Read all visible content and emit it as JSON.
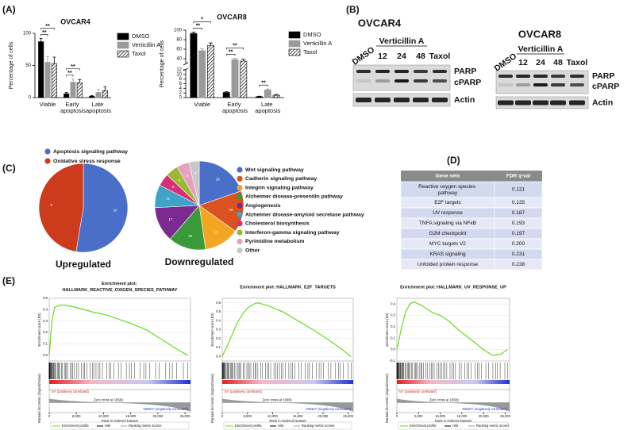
{
  "panel_labels": [
    "(A)",
    "(B)",
    "(C)",
    "(D)",
    "(E)"
  ],
  "chart_data": [
    {
      "type": "bar",
      "title": "OVCAR4",
      "ylabel": "Percentage of cells",
      "categories": [
        "Viable",
        "Early apoptosis",
        "Late apoptosis"
      ],
      "series": [
        {
          "name": "DMSO",
          "color": "#000000",
          "values": [
            87,
            6,
            2
          ],
          "errors": [
            5,
            2,
            1
          ]
        },
        {
          "name": "Verticillin A",
          "color": "#9a9a9a",
          "values": [
            55,
            24,
            8
          ],
          "errors": [
            9,
            5,
            5
          ]
        },
        {
          "name": "Taxol",
          "color": "#000000",
          "pattern": "hatch",
          "values": [
            53,
            23,
            11
          ],
          "errors": [
            10,
            5,
            6
          ]
        }
      ],
      "ylim": [
        0,
        100
      ],
      "yticks": [
        0,
        50,
        100
      ],
      "significance": [
        [
          "**",
          "**"
        ],
        [
          "**",
          "**"
        ],
        []
      ]
    },
    {
      "type": "bar",
      "title": "OVCAR8",
      "ylabel": "Percentage of cells",
      "categories": [
        "Viable",
        "Early apoptosis",
        "Late apoptosis"
      ],
      "series": [
        {
          "name": "DMSO",
          "color": "#000000",
          "values": [
            93,
            2.2,
            0.4
          ],
          "errors": [
            3,
            0.3,
            0.2
          ]
        },
        {
          "name": "Verticillin A",
          "color": "#9a9a9a",
          "values": [
            57,
            38,
            3.3
          ],
          "errors": [
            4,
            3,
            0.4
          ]
        },
        {
          "name": "Taxol",
          "color": "#000000",
          "pattern": "hatch",
          "values": [
            68,
            35,
            1.0
          ],
          "errors": [
            5,
            4,
            0.3
          ]
        }
      ],
      "ylim": [
        0,
        100
      ],
      "ybreak": [
        12,
        30
      ],
      "yticks": [
        0,
        2,
        4,
        6,
        8,
        10,
        12,
        40,
        60,
        80,
        100
      ],
      "significance": [
        [
          "**",
          "*"
        ],
        [
          "**",
          "**"
        ],
        [
          "**"
        ]
      ]
    },
    {
      "type": "pie",
      "title": "Upregulated",
      "categories": [
        "Apoptosis signaling pathway",
        "Oxidative stress response"
      ],
      "values": [
        10,
        9
      ],
      "colors": [
        "#4a6fc9",
        "#cc3b1c"
      ]
    },
    {
      "type": "pie",
      "title": "Downregulated",
      "categories": [
        "Wnt signaling pathway",
        "Cadherin signaling pathway",
        "Integrin signaling pathway",
        "Alzheimer disease-presenilin pathway",
        "Angiogenesis",
        "Alzheimer disease-amyloid secretase pathway",
        "Cholesterol biosynthesis",
        "Interferon-gamma signaling pathway",
        "Pyrimidine metabolism",
        "Other"
      ],
      "values": [
        26,
        20,
        17,
        18,
        17,
        11,
        6,
        6,
        6,
        5
      ],
      "colors": [
        "#4a6fc9",
        "#d9521f",
        "#f2a623",
        "#3a9a3a",
        "#7b2a8f",
        "#3fa3c8",
        "#d4317a",
        "#9ab832",
        "#e6a0c0",
        "#c8c8c8"
      ]
    },
    {
      "type": "line",
      "title": "Enrichment plot: HALLMARK_REACTIVE_OXIGEN_SPECIES_PATHWAY",
      "ylabel": "Enrichment score (ES)",
      "ylabel2": "Ranked list metric (Signal2Noise)",
      "xlabel": "Rank in Ordered Dataset",
      "x": [
        0,
        500,
        1000,
        2000,
        3000,
        5000,
        8000,
        10000,
        12000,
        15000,
        18000,
        20000,
        22000,
        24000,
        25500
      ],
      "series": [
        {
          "name": "Enrichment profile",
          "color": "#66dd22",
          "values": [
            0,
            0.3,
            0.42,
            0.44,
            0.44,
            0.42,
            0.38,
            0.36,
            0.33,
            0.28,
            0.22,
            0.16,
            0.1,
            0.04,
            0
          ]
        }
      ],
      "legend_entries": [
        "Hits",
        "Ranking metric scores"
      ],
      "annotations": [
        "'VA' (positively correlated)",
        "Zero cross at 10681",
        "'DMSO' (negatively correlated)"
      ],
      "xlim": [
        0,
        26000
      ],
      "xticks": [
        0,
        {
          "value": 5000,
          "label": "5,000"
        },
        {
          "value": 10000,
          "label": "10,000"
        },
        {
          "value": 15000,
          "label": "15,000"
        },
        {
          "value": 20000,
          "label": "20,000"
        },
        {
          "value": 25000,
          "label": "25,000"
        }
      ],
      "ylim": [
        -0.05,
        0.5
      ],
      "yticks": [
        {
          "value": 0,
          "label": "0.0"
        },
        0.1,
        0.2,
        0.3,
        0.4,
        0.5
      ]
    },
    {
      "type": "line",
      "title": "Enrichment plot: HALLMARK_E2F_TARGETS",
      "ylabel": "Enrichment score (ES)",
      "ylabel2": "Ranked list metric (Signal2Noise)",
      "xlabel": "Rank in Ordered Dataset",
      "x": [
        0,
        1000,
        2000,
        3000,
        4000,
        5000,
        6000,
        7000,
        9000,
        12000,
        15000,
        18000,
        21000,
        24000,
        25500
      ],
      "series": [
        {
          "name": "Enrichment profile",
          "color": "#66dd22",
          "values": [
            0,
            0.12,
            0.25,
            0.38,
            0.47,
            0.54,
            0.58,
            0.6,
            0.57,
            0.5,
            0.4,
            0.3,
            0.19,
            0.07,
            0
          ]
        }
      ],
      "legend_entries": [
        "Hits",
        "Ranking metric scores"
      ],
      "annotations": [
        "'VA' (positively correlated)",
        "Zero cross at 10681",
        "'DMSO' (negatively correlated)"
      ],
      "xlim": [
        0,
        26000
      ],
      "xticks": [
        0,
        {
          "value": 5000,
          "label": "5,000"
        },
        {
          "value": 10000,
          "label": "10,000"
        },
        {
          "value": 15000,
          "label": "15,000"
        },
        {
          "value": 20000,
          "label": "20,000"
        },
        {
          "value": 25000,
          "label": "25,000"
        }
      ],
      "ylim": [
        -0.05,
        0.65
      ],
      "yticks": [
        {
          "value": 0,
          "label": "0.0"
        },
        0.1,
        0.2,
        0.3,
        0.4,
        0.5,
        0.6
      ]
    },
    {
      "type": "line",
      "title": "Enrichment plot: HALLMARK_UV_RESPONSE_UP",
      "ylabel": "Enrichment score (ES)",
      "ylabel2": "Ranked list metric (Signal2Noise)",
      "xlabel": "Rank in Ordered Dataset",
      "x": [
        0,
        1000,
        2000,
        3000,
        4000,
        6000,
        8000,
        10000,
        12000,
        14000,
        16000,
        18000,
        20000,
        22000,
        24000,
        25500
      ],
      "series": [
        {
          "name": "Enrichment profile",
          "color": "#66dd22",
          "values": [
            0,
            0.18,
            0.33,
            0.4,
            0.42,
            0.38,
            0.33,
            0.3,
            0.25,
            0.18,
            0.12,
            0.06,
            0.0,
            -0.05,
            -0.04,
            0
          ]
        }
      ],
      "legend_entries": [
        "Hits",
        "Ranking metric scores"
      ],
      "annotations": [
        "'VA' (positively correlated)",
        "Zero cross at 10681",
        "'DMSO' (negatively correlated)"
      ],
      "xlim": [
        0,
        26000
      ],
      "xticks": [
        0,
        {
          "value": 5000,
          "label": "5,000"
        },
        {
          "value": 10000,
          "label": "10,000"
        },
        {
          "value": 15000,
          "label": "15,000"
        },
        {
          "value": 20000,
          "label": "20,000"
        },
        {
          "value": 25000,
          "label": "25,000"
        }
      ],
      "ylim": [
        -0.1,
        0.45
      ],
      "yticks": [
        -0.1,
        {
          "value": 0,
          "label": "0.0"
        },
        0.1,
        0.2,
        0.3,
        0.4
      ]
    }
  ],
  "blots": [
    {
      "title": "OVCAR4",
      "control": "DMSO",
      "treatment": "Verticillin A",
      "doses": [
        "12",
        "24",
        "48"
      ],
      "reference": "Taxol",
      "bands": [
        "PARP",
        "cPARP"
      ],
      "loading": "Actin"
    },
    {
      "title": "OVCAR8",
      "control": "DMSO",
      "treatment": "Verticillin A",
      "doses": [
        "12",
        "24",
        "48"
      ],
      "reference": "Taxol",
      "bands": [
        "PARP",
        "cPARP"
      ],
      "loading": "Actin"
    }
  ],
  "table": {
    "columns": [
      "Gene sets",
      "FDR q-val"
    ],
    "rows": [
      [
        "Reactive oxygen species pathway",
        "0.131"
      ],
      [
        "E2F targets",
        "0.135"
      ],
      [
        "UV response",
        "0.187"
      ],
      [
        "TNFA signaling via NFκB",
        "0.193"
      ],
      [
        "G2M checkpoint",
        "0.197"
      ],
      [
        "MYC targets V2",
        "0.200"
      ],
      [
        "KRAS signaling",
        "0.231"
      ],
      [
        "Unfolded protein response",
        "0.238"
      ]
    ]
  }
}
